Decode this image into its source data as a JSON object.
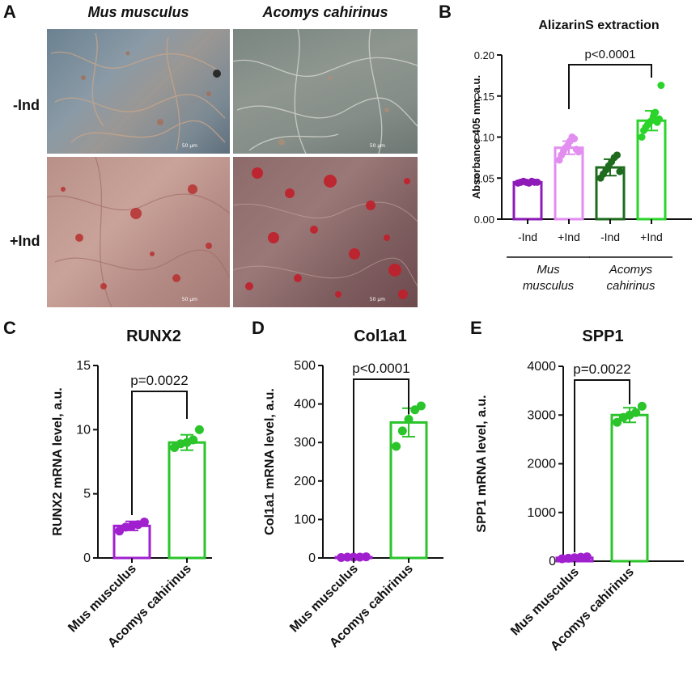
{
  "panel_letters": {
    "a": "A",
    "b": "B",
    "c": "C",
    "d": "D",
    "e": "E"
  },
  "panel_a": {
    "species_1": "Mus musculus",
    "species_2": "Acomys cahirinus",
    "row_1": "-Ind",
    "row_2": "+Ind",
    "scale_bar": "50 µm"
  },
  "chart_data": [
    {
      "type": "bar",
      "title": "AlizarinS extraction",
      "ylabel": "Absorbance 405 nm, a.u.",
      "ylim": [
        0,
        0.2
      ],
      "yticks": [
        "0.00",
        "0.05",
        "0.10",
        "0.15",
        "0.20"
      ],
      "categories": [
        "-Ind",
        "+Ind",
        "-Ind",
        "+Ind"
      ],
      "groups": [
        {
          "label": "Mus musculus",
          "lines": [
            "Mus",
            "musculus"
          ]
        },
        {
          "label": "Acomys cahirinus",
          "lines": [
            "Acomys",
            "cahirinus"
          ]
        }
      ],
      "values": [
        0.045,
        0.087,
        0.063,
        0.12
      ],
      "errors": [
        0.002,
        0.008,
        0.01,
        0.012
      ],
      "colors": [
        "#8E1AB8",
        "#E28EF0",
        "#1E6B1E",
        "#2BD42B"
      ],
      "points": [
        [
          0.044,
          0.045,
          0.046,
          0.045,
          0.044,
          0.046,
          0.045,
          0.045
        ],
        [
          0.072,
          0.078,
          0.083,
          0.087,
          0.09,
          0.095,
          0.1,
          0.098,
          0.085,
          0.082
        ],
        [
          0.05,
          0.055,
          0.06,
          0.065,
          0.07,
          0.075,
          0.078,
          0.058
        ],
        [
          0.1,
          0.108,
          0.112,
          0.115,
          0.118,
          0.12,
          0.125,
          0.13,
          0.118,
          0.122,
          0.163
        ]
      ],
      "comparison": {
        "label": "p<0.0001",
        "from": 1,
        "to": 3
      }
    },
    {
      "type": "bar",
      "title": "RUNX2",
      "ylabel": "RUNX2 mRNA level, a.u.",
      "ylim": [
        0,
        15
      ],
      "yticks": [
        "0",
        "5",
        "10",
        "15"
      ],
      "categories": [
        "Mus musculus",
        "Acomys cahirinus"
      ],
      "values": [
        2.5,
        9.0
      ],
      "errors": [
        0.35,
        0.6
      ],
      "colors": [
        "#A020D0",
        "#2BC42B"
      ],
      "points": [
        [
          2.1,
          2.4,
          2.5,
          2.6,
          2.8
        ],
        [
          8.6,
          8.9,
          9.0,
          9.2,
          10.0
        ]
      ],
      "comparison": {
        "label": "p=0.0022",
        "from": 0,
        "to": 1
      }
    },
    {
      "type": "bar",
      "title": "Col1a1",
      "ylabel": "Col1a1 mRNA level, a.u.",
      "ylim": [
        0,
        500
      ],
      "yticks": [
        "0",
        "100",
        "200",
        "300",
        "400",
        "500"
      ],
      "categories": [
        "Mus musculus",
        "Acomys cahirinus"
      ],
      "values": [
        2,
        352
      ],
      "errors": [
        1,
        37
      ],
      "colors": [
        "#A020D0",
        "#2BC42B"
      ],
      "points": [
        [
          1,
          2,
          2,
          2,
          3
        ],
        [
          290,
          330,
          360,
          385,
          395
        ]
      ],
      "comparison": {
        "label": "p<0.0001",
        "from": 0,
        "to": 1
      }
    },
    {
      "type": "bar",
      "title": "SPP1",
      "ylabel": "SPP1 mRNA level, a.u.",
      "ylim": [
        0,
        4000
      ],
      "yticks": [
        "0",
        "1000",
        "2000",
        "3000",
        "4000"
      ],
      "categories": [
        "Mus musculus",
        "Acomys cahirinus"
      ],
      "values": [
        70,
        3000
      ],
      "errors": [
        20,
        150
      ],
      "colors": [
        "#A020D0",
        "#2BC42B"
      ],
      "points": [
        [
          50,
          60,
          70,
          80,
          90
        ],
        [
          2850,
          2950,
          3000,
          3050,
          3180
        ]
      ],
      "comparison": {
        "label": "p=0.0022",
        "from": 0,
        "to": 1
      }
    }
  ]
}
